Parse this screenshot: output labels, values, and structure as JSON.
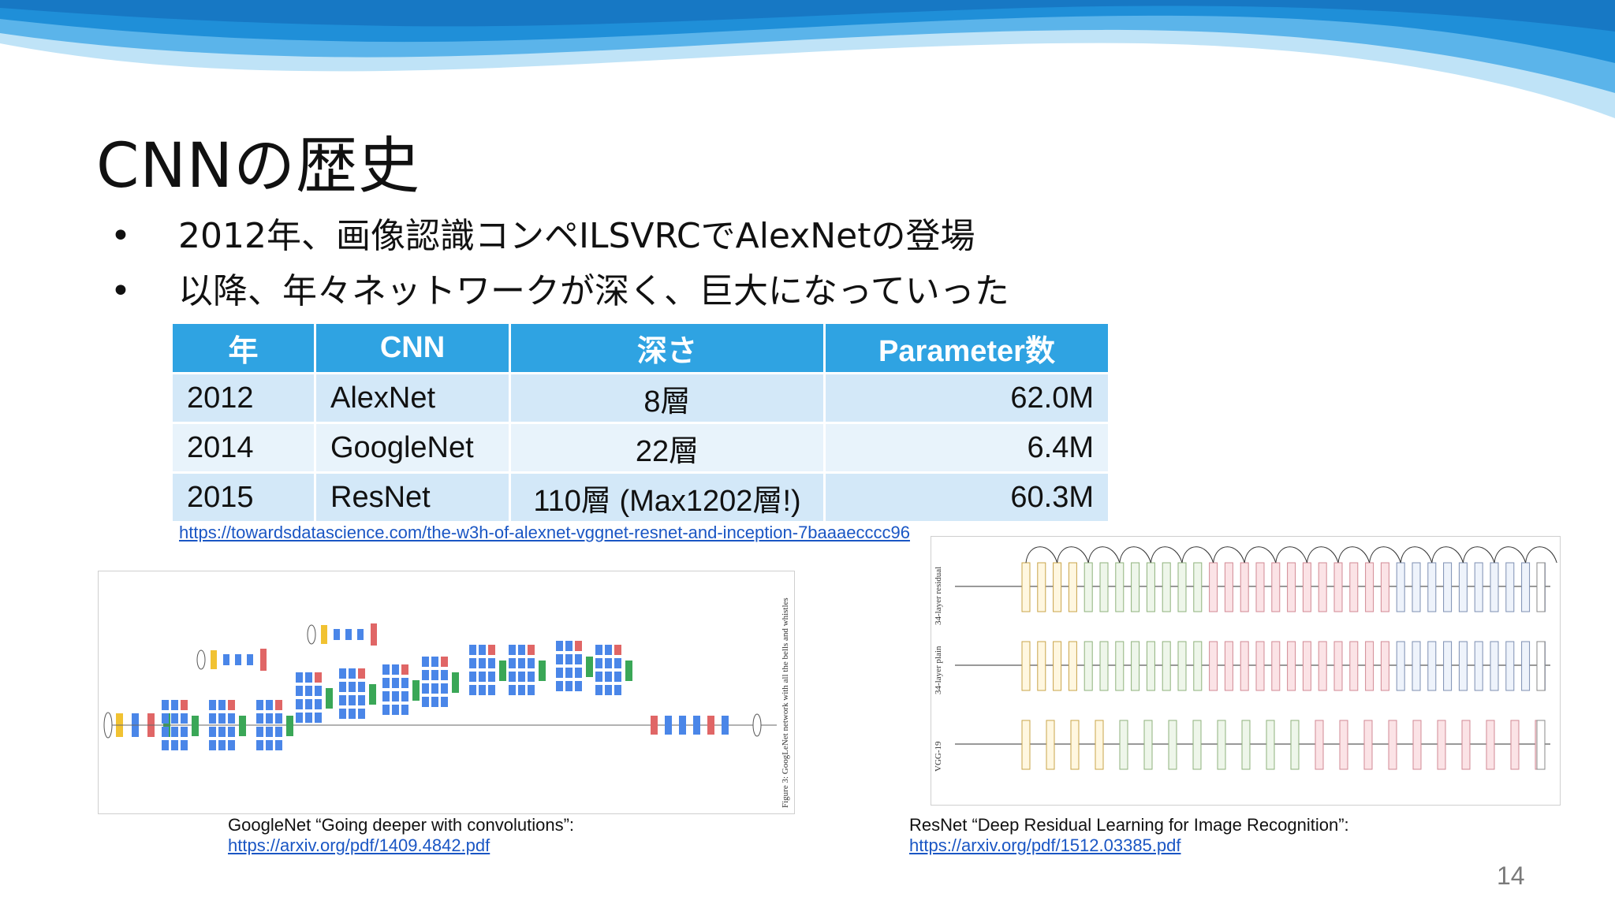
{
  "slide": {
    "title": "CNNの歴史",
    "bullets": [
      "2012年、画像認識コンペILSVRCでAlexNetの登場",
      "以降、年々ネットワークが深く、巨大になっていった"
    ],
    "bullet_symbol": "•",
    "page_number": "14"
  },
  "table": {
    "headers": [
      "年",
      "CNN",
      "深さ",
      "Parameter数"
    ],
    "rows": [
      [
        "2012",
        "AlexNet",
        "8層",
        "62.0M"
      ],
      [
        "2014",
        "GoogleNet",
        "22層",
        "6.4M"
      ],
      [
        "2015",
        "ResNet",
        "110層 (Max1202層!)",
        "60.3M"
      ]
    ],
    "header_color": "#2fa3e2"
  },
  "reference_link": "https://towardsdatascience.com/the-w3h-of-alexnet-vggnet-resnet-and-inception-7baaaecccc96",
  "figures": {
    "googlenet": {
      "side_caption": "Figure 3: GoogLeNet network with all the bells and whistles",
      "caption_text": "GoogleNet “Going deeper with convolutions”:",
      "caption_link": "https://arxiv.org/pdf/1409.4842.pdf"
    },
    "resnet": {
      "row_labels": [
        "34-layer residual",
        "34-layer plain",
        "VGG-19"
      ],
      "caption_text": "ResNet “Deep Residual Learning for Image Recognition”:",
      "caption_link": "https://arxiv.org/pdf/1512.03385.pdf"
    }
  },
  "colors": {
    "wave_dark": "#1f8fd8",
    "wave_light": "#bfe3f7",
    "conv_blue": "#4a86e8",
    "pool_red": "#e06666",
    "concat_green": "#3aa757",
    "softmax_yellow": "#f1c232"
  }
}
